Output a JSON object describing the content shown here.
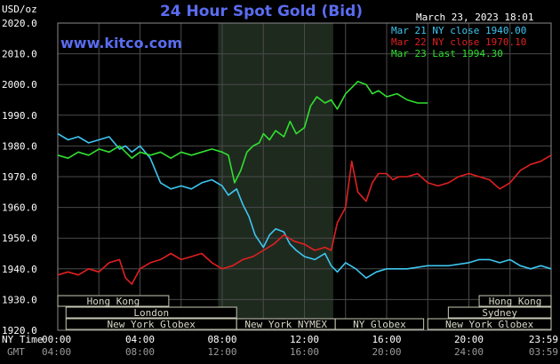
{
  "chart_data": {
    "type": "line",
    "title": "24 Hour Spot Gold (Bid)",
    "brand": "www.kitco.com",
    "datetime": "March 23, 2023 18:01",
    "ylabel": "USD/oz",
    "ylim": [
      1920,
      2020
    ],
    "ytick_labels": [
      "2020.0",
      "2010.0",
      "2000.0",
      "1990.0",
      "1980.0",
      "1970.0",
      "1960.0",
      "1950.0",
      "1940.0",
      "1930.0",
      "1920.0"
    ],
    "xlim": [
      0,
      24
    ],
    "xtick_ny": [
      "00:00",
      "04:00",
      "08:00",
      "12:00",
      "16:00",
      "20:00",
      "23:59"
    ],
    "xtick_gmt": [
      "04:00",
      "08:00",
      "12:00",
      "16:00",
      "20:00",
      "24:00",
      "03:59"
    ],
    "x_row_labels": {
      "ny": "NY Time",
      "gmt": "GMT"
    },
    "legend": [
      {
        "name": "Mar 21 NY close 1940.00",
        "color": "#3ec6f0"
      },
      {
        "name": "Mar 22 NY close 1970.10",
        "color": "#e02020"
      },
      {
        "name": "Mar 23 Last 1994.30",
        "color": "#30e030"
      }
    ],
    "highlight_range": [
      7.8,
      13.4
    ],
    "sessions": [
      {
        "label": "Hong Kong",
        "start": 0,
        "end": 5.4,
        "row": 0
      },
      {
        "label": "London",
        "start": 0.4,
        "end": 8.7,
        "row": 1
      },
      {
        "label": "New York Globex",
        "start": 0.4,
        "end": 8.7,
        "row": 2
      },
      {
        "label": "New York NYMEX",
        "start": 8.7,
        "end": 13.5,
        "row": 2
      },
      {
        "label": "NY Globex",
        "start": 13.5,
        "end": 17.8,
        "row": 2
      },
      {
        "label": "Hong Kong",
        "start": 20.5,
        "end": 24,
        "row": 0
      },
      {
        "label": "Sydney",
        "start": 19.0,
        "end": 24,
        "row": 1
      },
      {
        "label": "New York Globex",
        "start": 18.0,
        "end": 24,
        "row": 2
      }
    ],
    "series": [
      {
        "name": "Mar 21 NY close 1940.00",
        "color": "#3ec6f0",
        "x": [
          0,
          0.5,
          1,
          1.5,
          2,
          2.5,
          3,
          3.3,
          3.6,
          4,
          4.5,
          5,
          5.5,
          6,
          6.5,
          7,
          7.5,
          8,
          8.3,
          8.7,
          9,
          9.3,
          9.6,
          10,
          10.3,
          10.6,
          11,
          11.3,
          11.6,
          12,
          12.5,
          13,
          13.3,
          13.6,
          14,
          14.5,
          15,
          15.5,
          16,
          17,
          18,
          19,
          20,
          20.5,
          21,
          21.5,
          22,
          22.5,
          23,
          23.5,
          24
        ],
        "y": [
          1984,
          1982,
          1983,
          1981,
          1982,
          1983,
          1979,
          1980,
          1978,
          1980,
          1976,
          1968,
          1966,
          1967,
          1966,
          1968,
          1969,
          1967,
          1964,
          1966,
          1961,
          1957,
          1951,
          1947,
          1951,
          1953,
          1952,
          1948,
          1946,
          1944,
          1943,
          1945,
          1941,
          1939,
          1942,
          1940,
          1937,
          1939,
          1940,
          1940,
          1941,
          1941,
          1942,
          1943,
          1943,
          1942,
          1943,
          1941,
          1940,
          1941,
          1940
        ]
      },
      {
        "name": "Mar 22 NY close 1970.10",
        "color": "#e02020",
        "x": [
          0,
          0.5,
          1,
          1.5,
          2,
          2.5,
          3,
          3.3,
          3.6,
          4,
          4.5,
          5,
          5.5,
          6,
          6.5,
          7,
          7.5,
          8,
          8.5,
          9,
          9.5,
          10,
          10.5,
          11,
          11.5,
          12,
          12.5,
          13,
          13.3,
          13.6,
          14,
          14.3,
          14.6,
          15,
          15.3,
          15.6,
          16,
          16.3,
          16.6,
          17,
          17.5,
          18,
          18.5,
          19,
          19.5,
          20,
          20.5,
          21,
          21.5,
          22,
          22.5,
          23,
          23.5,
          24
        ],
        "y": [
          1938,
          1939,
          1938,
          1940,
          1939,
          1942,
          1943,
          1937,
          1935,
          1940,
          1942,
          1943,
          1945,
          1943,
          1944,
          1945,
          1942,
          1940,
          1941,
          1943,
          1944,
          1946,
          1948,
          1951,
          1949,
          1948,
          1946,
          1947,
          1946,
          1955,
          1960,
          1975,
          1965,
          1962,
          1968,
          1971,
          1971,
          1969,
          1970,
          1970,
          1971,
          1968,
          1967,
          1968,
          1970,
          1971,
          1970,
          1969,
          1966,
          1968,
          1972,
          1974,
          1975,
          1977
        ]
      },
      {
        "name": "Mar 23 Last 1994.30",
        "color": "#30e030",
        "x": [
          0,
          0.5,
          1,
          1.5,
          2,
          2.5,
          3,
          3.3,
          3.6,
          4,
          4.5,
          5,
          5.5,
          6,
          6.5,
          7,
          7.5,
          8,
          8.3,
          8.6,
          8.9,
          9.2,
          9.5,
          9.8,
          10,
          10.3,
          10.6,
          11,
          11.3,
          11.6,
          12,
          12.3,
          12.6,
          13,
          13.3,
          13.6,
          14,
          14.3,
          14.6,
          15,
          15.3,
          15.6,
          16,
          16.5,
          17,
          17.5,
          18
        ],
        "y": [
          1977,
          1976,
          1978,
          1977,
          1979,
          1978,
          1980,
          1978,
          1976,
          1978,
          1977,
          1978,
          1976,
          1978,
          1977,
          1978,
          1979,
          1978,
          1977,
          1968,
          1972,
          1978,
          1980,
          1981,
          1984,
          1982,
          1985,
          1983,
          1988,
          1984,
          1986,
          1993,
          1996,
          1994,
          1995,
          1992,
          1997,
          1999,
          2001,
          2000,
          1997,
          1998,
          1996,
          1997,
          1995,
          1994,
          1994
        ]
      }
    ]
  }
}
